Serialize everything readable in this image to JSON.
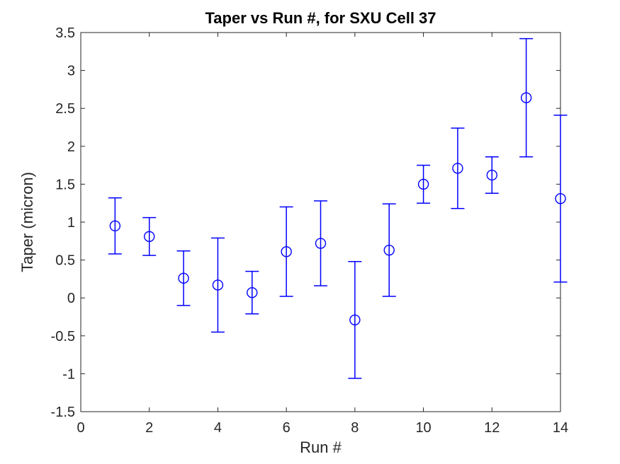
{
  "figure": {
    "background": "#ffffff"
  },
  "colors": {
    "series": "#0000ff",
    "axis": "#262626",
    "tick_text": "#262626",
    "title_text": "#000000",
    "background": "#ffffff"
  },
  "chart_data": {
    "type": "scatter",
    "subtype": "errorbar",
    "title": "Taper vs Run #, for SXU Cell 37",
    "xlabel": "Run #",
    "ylabel": "Taper (micron)",
    "xlim": [
      0,
      14
    ],
    "ylim": [
      -1.5,
      3.5
    ],
    "xticks": [
      0,
      2,
      4,
      6,
      8,
      10,
      12,
      14
    ],
    "yticks": [
      -1.5,
      -1,
      -0.5,
      0,
      0.5,
      1,
      1.5,
      2,
      2.5,
      3,
      3.5
    ],
    "grid": false,
    "box": true,
    "tick_direction": "in",
    "legend": null,
    "marker": "open-circle",
    "series": [
      {
        "name": "Taper",
        "x": [
          1,
          2,
          3,
          4,
          5,
          6,
          7,
          8,
          9,
          10,
          11,
          12,
          13,
          14
        ],
        "y": [
          0.95,
          0.81,
          0.26,
          0.17,
          0.07,
          0.61,
          0.72,
          -0.29,
          0.63,
          1.5,
          1.71,
          1.62,
          2.64,
          1.31
        ],
        "yerr": [
          0.37,
          0.25,
          0.36,
          0.62,
          0.28,
          0.59,
          0.56,
          0.77,
          0.61,
          0.25,
          0.53,
          0.24,
          0.78,
          1.1
        ],
        "color": "#0000ff"
      }
    ]
  }
}
